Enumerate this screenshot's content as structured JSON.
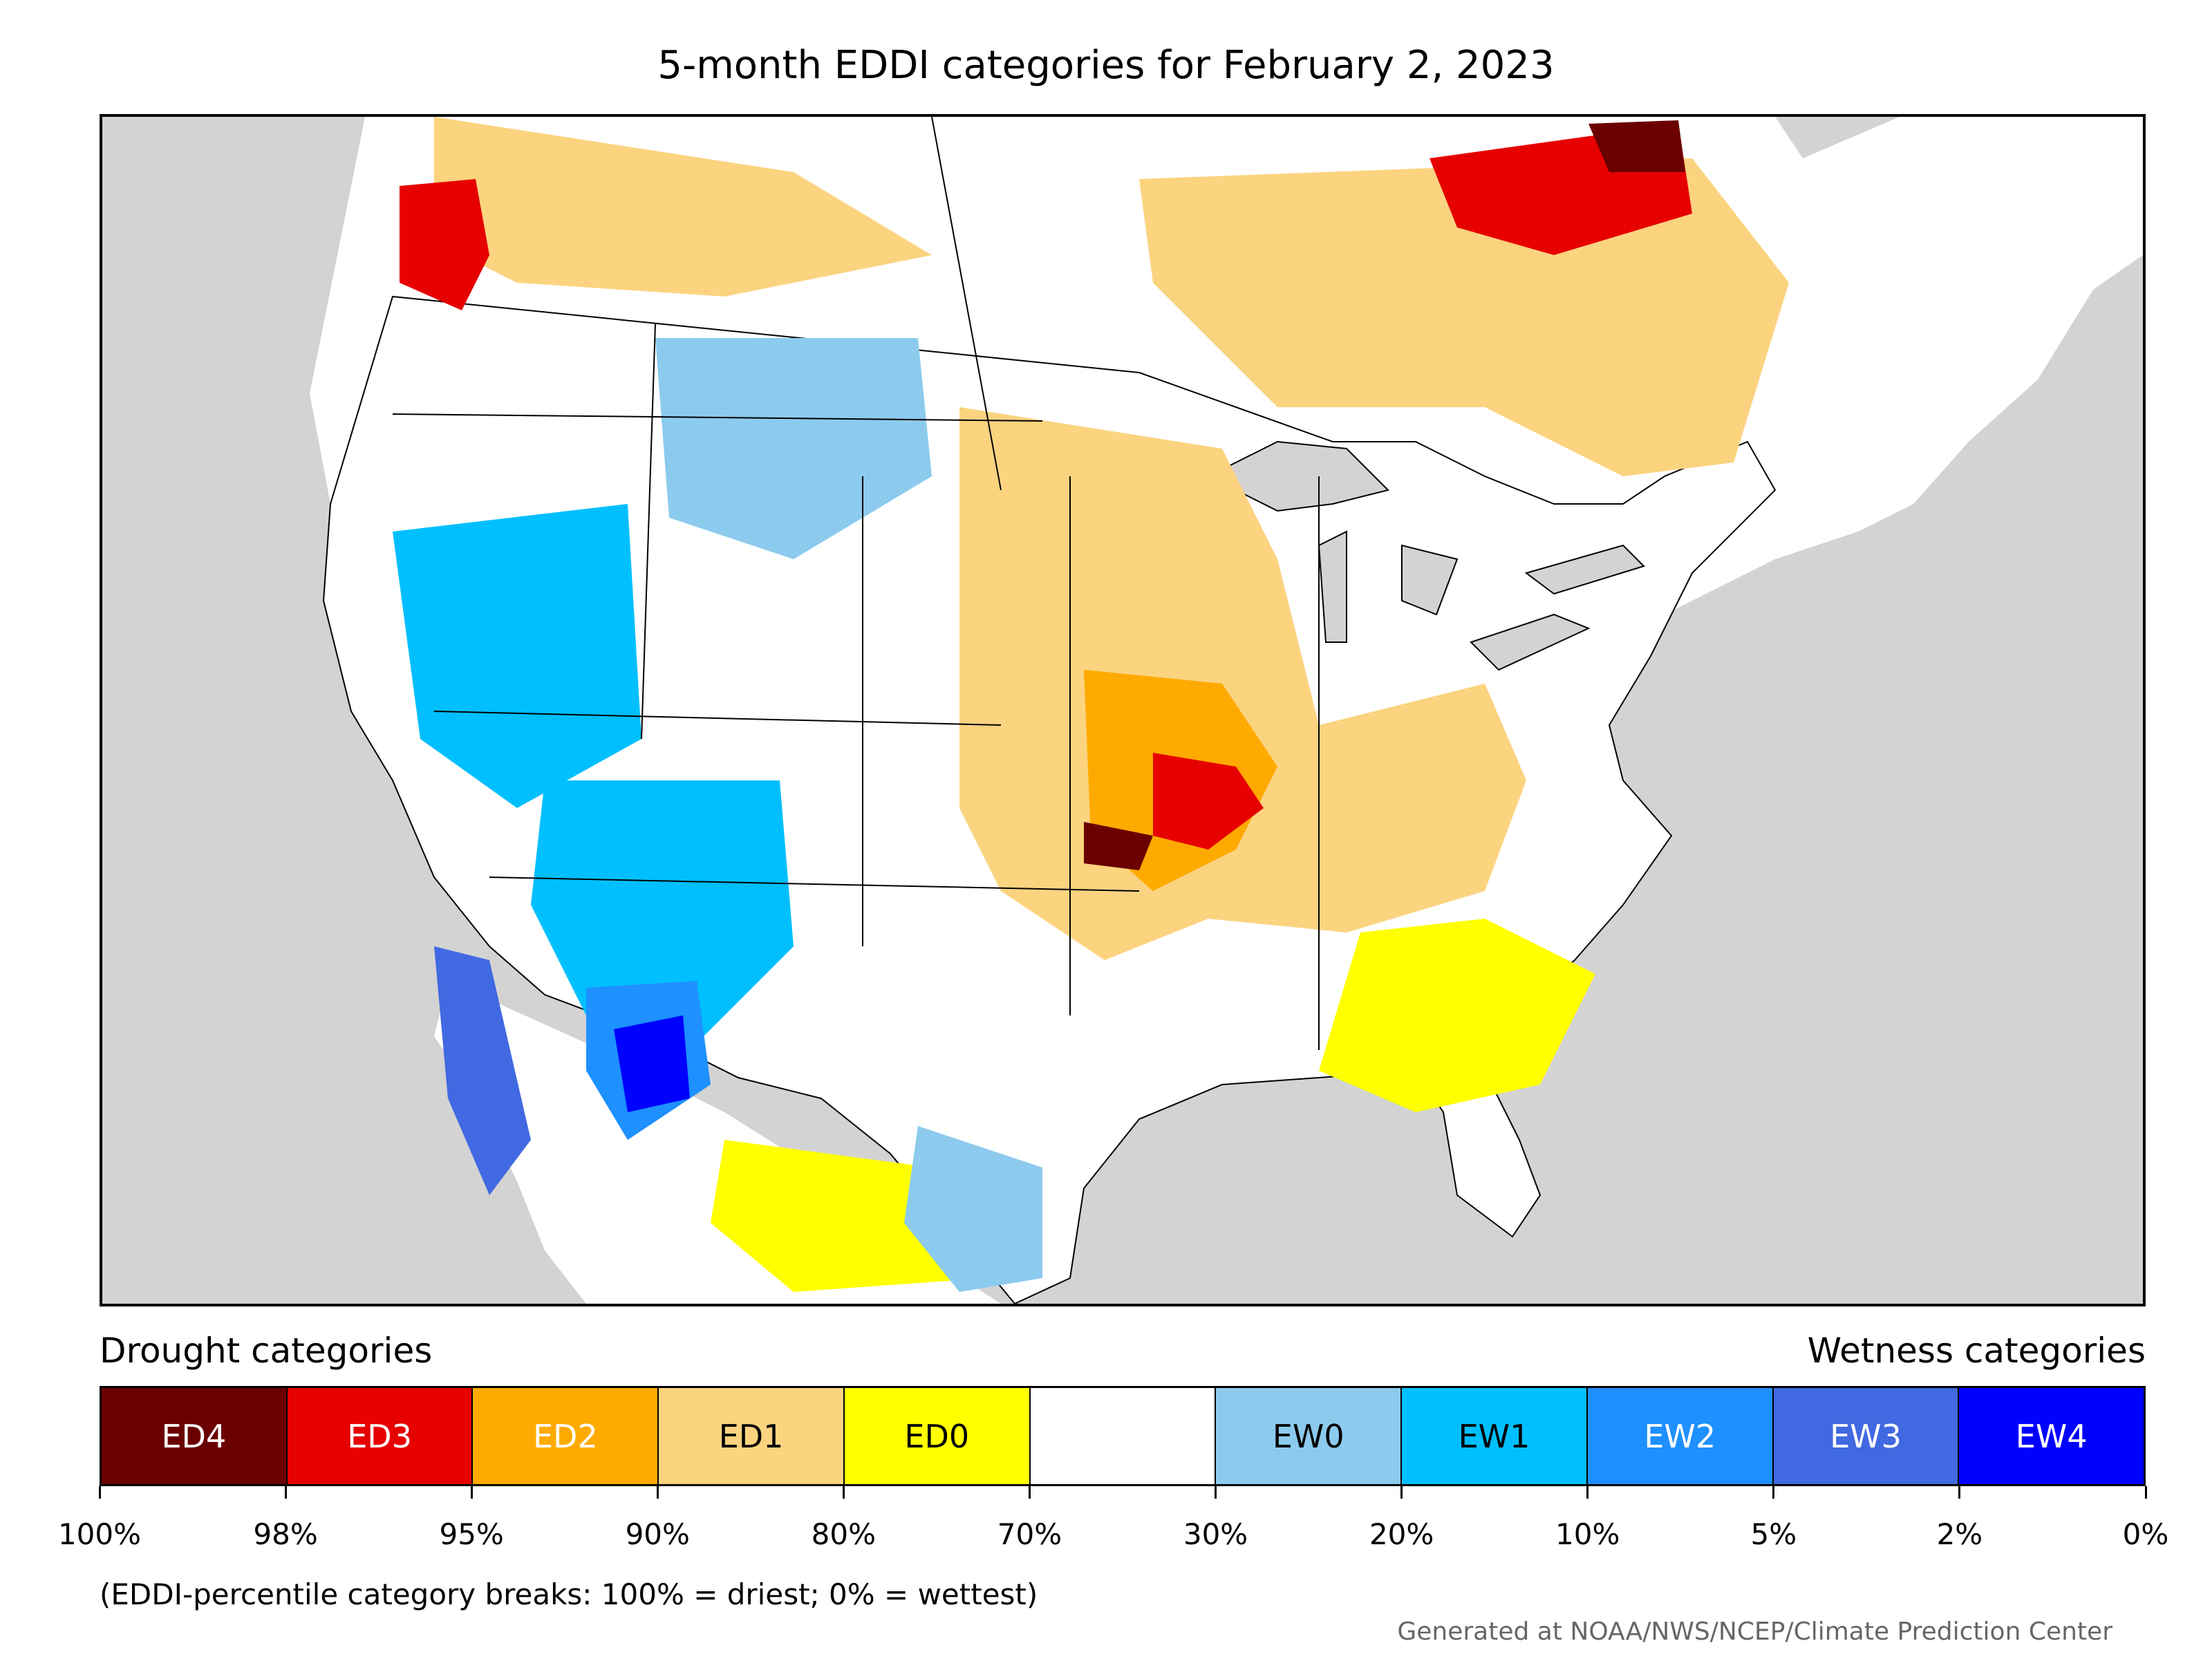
{
  "title": "5-month EDDI categories for February 2, 2023",
  "legend": {
    "left_label": "Drought categories",
    "right_label": "Wetness categories",
    "categories": [
      {
        "label": "ED4",
        "color": "#6b0000",
        "text_color": "#ffffff"
      },
      {
        "label": "ED3",
        "color": "#e60000",
        "text_color": "#ffffff"
      },
      {
        "label": "ED2",
        "color": "#ffaa00",
        "text_color": "#ffffff"
      },
      {
        "label": "ED1",
        "color": "#fcd37f",
        "text_color": "#000000"
      },
      {
        "label": "ED0",
        "color": "#ffff00",
        "text_color": "#000000"
      },
      {
        "label": "",
        "color": "#ffffff",
        "text_color": "#000000"
      },
      {
        "label": "EW0",
        "color": "#8ccbee",
        "text_color": "#000000"
      },
      {
        "label": "EW1",
        "color": "#00bfff",
        "text_color": "#000000"
      },
      {
        "label": "EW2",
        "color": "#1e90ff",
        "text_color": "#ffffff"
      },
      {
        "label": "EW3",
        "color": "#4169e1",
        "text_color": "#ffffff"
      },
      {
        "label": "EW4",
        "color": "#0000ff",
        "text_color": "#ffffff"
      }
    ],
    "ticks": [
      "100%",
      "98%",
      "95%",
      "90%",
      "80%",
      "70%",
      "30%",
      "20%",
      "10%",
      "5%",
      "2%",
      "0%"
    ]
  },
  "note": "(EDDI-percentile category breaks: 100% = driest; 0% = wettest)",
  "credit": "Generated at NOAA/NWS/NCEP/Climate Prediction Center",
  "colors": {
    "ocean": "#d3d3d3",
    "background": "#ffffff"
  }
}
